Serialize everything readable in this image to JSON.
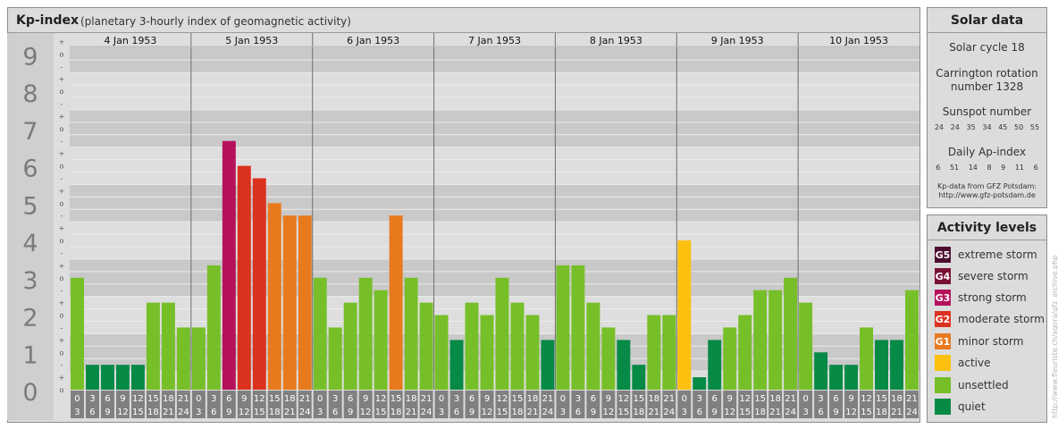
{
  "header": {
    "title": "Kp-index",
    "subtitle": "(planetary 3-hourly index of geomagnetic activity)"
  },
  "solar": {
    "title": "Solar data",
    "cycle": "Solar cycle 18",
    "carrington_line1": "Carrington rotation",
    "carrington_line2": "number 1328",
    "sunspot_label": "Sunspot number",
    "sunspot_values": [
      "24",
      "24",
      "35",
      "34",
      "45",
      "50",
      "55"
    ],
    "ap_label": "Daily Ap-index",
    "ap_values": [
      "6",
      "51",
      "14",
      "8",
      "9",
      "11",
      "6"
    ],
    "source_line1": "Kp-data from GFZ Potsdam:",
    "source_line2": "http://www.gfz-potsdam.de"
  },
  "levels": {
    "title": "Activity levels",
    "items": [
      {
        "code": "G5",
        "label": "extreme storm",
        "color": "#4d0f2f"
      },
      {
        "code": "G4",
        "label": "severe storm",
        "color": "#7a1038"
      },
      {
        "code": "G3",
        "label": "strong storm",
        "color": "#b5125b"
      },
      {
        "code": "G2",
        "label": "moderate storm",
        "color": "#db3220"
      },
      {
        "code": "G1",
        "label": "minor storm",
        "color": "#e87a1e"
      },
      {
        "code": "",
        "label": "active",
        "color": "#fcc10e"
      },
      {
        "code": "",
        "label": "unsettled",
        "color": "#77bf28"
      },
      {
        "code": "",
        "label": "quiet",
        "color": "#078a45"
      }
    ]
  },
  "watermark": "http://www.fleuriste.ch/agora/gfz_archive.php",
  "chart_data": {
    "type": "bar",
    "title": "Kp-index",
    "ylim": [
      0,
      9
    ],
    "y_ticks": [
      "0",
      "1",
      "2",
      "3",
      "4",
      "5",
      "6",
      "7",
      "8",
      "9"
    ],
    "sub_tick_labels": [
      "-",
      "o",
      "+"
    ],
    "days": [
      "4 Jan 1953",
      "5 Jan 1953",
      "6 Jan 1953",
      "7 Jan 1953",
      "8 Jan 1953",
      "9 Jan 1953",
      "10 Jan 1953"
    ],
    "interval_start_hours": [
      "0",
      "3",
      "6",
      "9",
      "12",
      "15",
      "18",
      "21"
    ],
    "interval_end_hours": [
      "3",
      "6",
      "9",
      "12",
      "15",
      "18",
      "21",
      "24"
    ],
    "values": [
      3.0,
      0.667,
      0.667,
      0.667,
      0.667,
      2.333,
      2.333,
      1.667,
      1.667,
      3.333,
      6.667,
      6.0,
      5.667,
      5.0,
      4.667,
      4.667,
      3.0,
      1.667,
      2.333,
      3.0,
      2.667,
      4.667,
      3.0,
      2.333,
      2.0,
      1.333,
      2.333,
      2.0,
      3.0,
      2.333,
      2.0,
      1.333,
      3.333,
      3.333,
      2.333,
      1.667,
      1.333,
      0.667,
      2.0,
      2.0,
      4.0,
      0.333,
      1.333,
      1.667,
      2.0,
      2.667,
      2.667,
      3.0,
      2.333,
      1.0,
      0.667,
      0.667,
      1.667,
      1.333,
      1.333,
      2.667
    ],
    "bar_colors": {
      "quiet": "#078a45",
      "unsettled": "#77bf28",
      "active": "#fcc10e",
      "G1": "#e87a1e",
      "G2": "#db3220",
      "G3": "#b5125b"
    },
    "colors": {
      "band_dark": "#c9c9c9",
      "band_light": "#dedede",
      "axis_label_bg": "#cfcfcf",
      "axis_label_color": "#7a7a7a",
      "hour_cell_bg": "#808080",
      "hour_cell_text": "#ffffff",
      "grid_line": "#ececec",
      "day_separator": "#6f6f6f"
    }
  }
}
